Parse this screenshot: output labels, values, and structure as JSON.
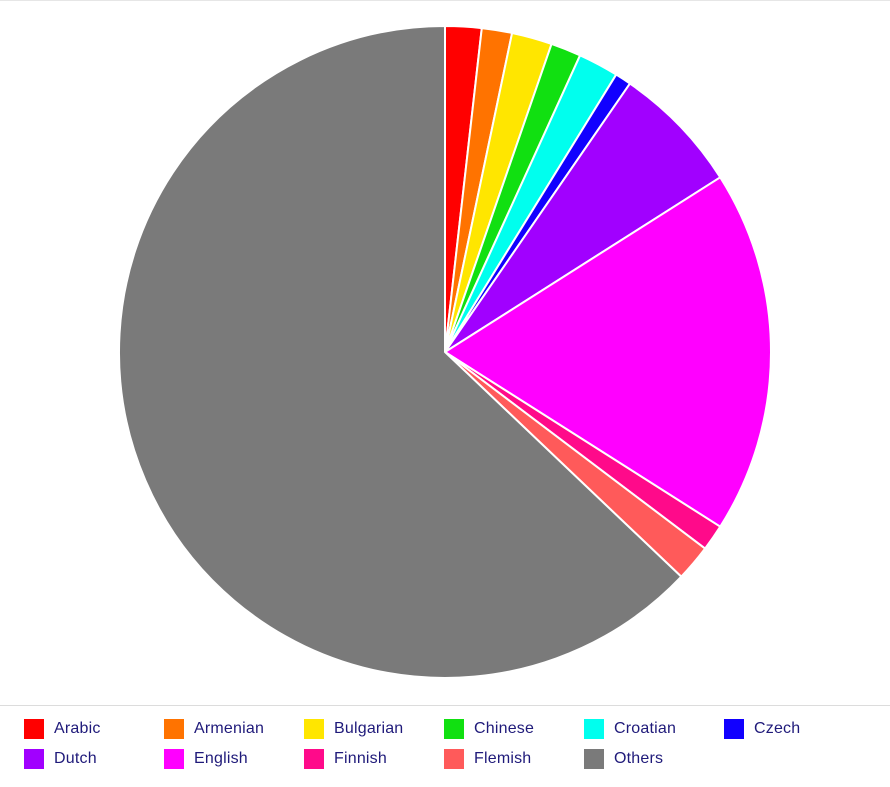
{
  "chart_data": {
    "type": "pie",
    "title": "",
    "legend_position": "bottom",
    "slices": [
      {
        "label": "Arabic",
        "value": 1.8,
        "color": "#ff0000"
      },
      {
        "label": "Armenian",
        "value": 1.5,
        "color": "#ff7300"
      },
      {
        "label": "Bulgarian",
        "value": 2.0,
        "color": "#ffe600"
      },
      {
        "label": "Chinese",
        "value": 1.5,
        "color": "#11e011"
      },
      {
        "label": "Croatian",
        "value": 2.0,
        "color": "#00ffee"
      },
      {
        "label": "Czech",
        "value": 0.8,
        "color": "#1100ff"
      },
      {
        "label": "Dutch",
        "value": 6.4,
        "color": "#a100ff"
      },
      {
        "label": "English",
        "value": 18.0,
        "color": "#ff00ff"
      },
      {
        "label": "Finnish",
        "value": 1.3,
        "color": "#ff0a8a"
      },
      {
        "label": "Flemish",
        "value": 1.8,
        "color": "#ff5a5a"
      },
      {
        "label": "Others",
        "value": 62.9,
        "color": "#7a7a7a"
      }
    ]
  }
}
